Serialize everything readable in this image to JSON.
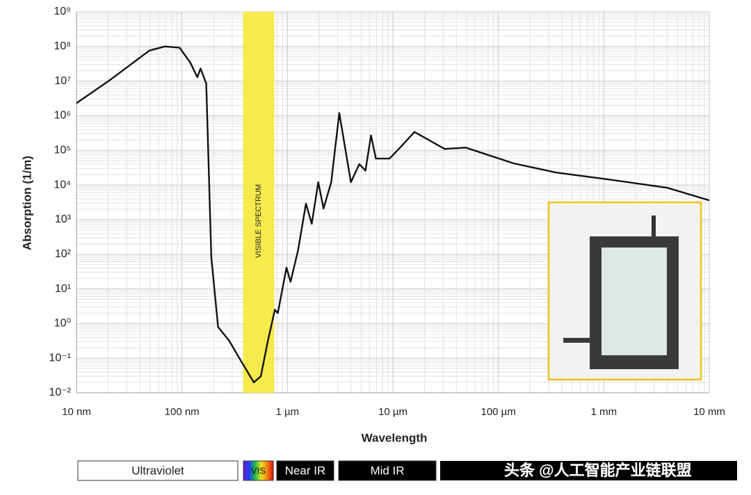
{
  "chart_data": {
    "type": "line",
    "x_label": "Wavelength",
    "y_label": "Absorption (1/m)",
    "xscale": "log",
    "yscale": "log",
    "grid": true,
    "minor_grid": true,
    "color": "#111111",
    "x": [
      1e-08,
      2.1e-08,
      4.9e-08,
      6.9e-08,
      9.5e-08,
      1.2e-07,
      1.4e-07,
      1.5e-07,
      1.7e-07,
      1.9e-07,
      2.2e-07,
      2.8e-07,
      3.5e-07,
      4.8e-07,
      5.6e-07,
      6.5e-07,
      7.6e-07,
      8.1e-07,
      9.8e-07,
      1.07e-06,
      1.26e-06,
      1.5e-06,
      1.7e-06,
      1.96e-06,
      2.2e-06,
      2.6e-06,
      3.1e-06,
      4e-06,
      4.8e-06,
      5.5e-06,
      6.2e-06,
      6.9e-06,
      9.3e-06,
      1.2e-05,
      1.6e-05,
      3.1e-05,
      4.9e-05,
      0.00014,
      0.00035,
      0.0012,
      0.004,
      0.01
    ],
    "values": [
      2300000,
      11000000,
      76000000,
      100000000,
      92000000,
      34000000,
      13000000,
      23000000,
      8500000,
      81,
      0.8,
      0.32,
      0.1,
      0.02,
      0.03,
      0.3,
      2.5,
      2,
      41,
      16,
      130,
      2900,
      760,
      12000,
      2100,
      12000,
      1200000,
      12000,
      40000,
      26000,
      270000,
      58000,
      58000,
      130000,
      340000,
      110000,
      120000,
      42000,
      23000,
      14000,
      8300,
      3600
    ],
    "xlim": [
      1e-08,
      0.01
    ],
    "ylim": [
      0.01,
      1000000000
    ],
    "xticks": [
      {
        "value": 1e-08,
        "label": "10 nm"
      },
      {
        "value": 1e-07,
        "label": "100 nm"
      },
      {
        "value": 1e-06,
        "label": "1 µm"
      },
      {
        "value": 1e-05,
        "label": "10 µm"
      },
      {
        "value": 0.0001,
        "label": "100 µm"
      },
      {
        "value": 0.001,
        "label": "1 mm"
      },
      {
        "value": 0.01,
        "label": "10 mm"
      }
    ],
    "yticks": [
      {
        "value": 0.01,
        "label": "10⁻²"
      },
      {
        "value": 0.1,
        "label": "10⁻¹"
      },
      {
        "value": 1,
        "label": "10⁰"
      },
      {
        "value": 10,
        "label": "10¹"
      },
      {
        "value": 100,
        "label": "10²"
      },
      {
        "value": 1000,
        "label": "10³"
      },
      {
        "value": 10000,
        "label": "10⁴"
      },
      {
        "value": 100000,
        "label": "10⁵"
      },
      {
        "value": 1000000,
        "label": "10⁶"
      },
      {
        "value": 10000000,
        "label": "10⁷"
      },
      {
        "value": 100000000,
        "label": "10⁸"
      },
      {
        "value": 1000000000,
        "label": "10⁹"
      }
    ],
    "visible_band": [
      3.8e-07,
      7.5e-07
    ],
    "visible_color": "#f6ea4c",
    "visible_label": "VISIBLE SPECTRUM",
    "spectrum_labels": [
      "Ultraviolet",
      "VIS",
      "Near IR",
      "Mid IR"
    ],
    "watermark": "头条 @人工智能产业链联盟"
  }
}
